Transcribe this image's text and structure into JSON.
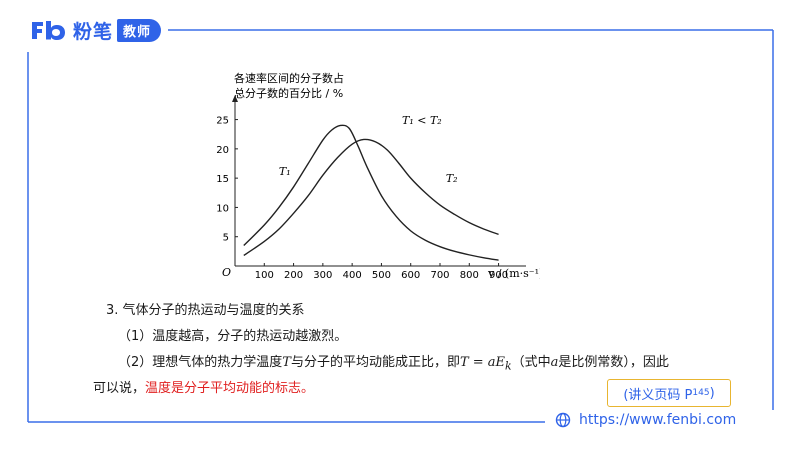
{
  "brand": {
    "logo_mark": "Fb",
    "name": "粉笔",
    "badge": "教师"
  },
  "chart_data": {
    "type": "line",
    "title_line1": "各速率区间的分子数占",
    "title_line2": "总分子数的百分比 / %",
    "origin_label": "O",
    "x_axis_label": "v / (m·s⁻¹)",
    "x_ticks": [
      100,
      200,
      300,
      400,
      500,
      600,
      700,
      800,
      900
    ],
    "y_ticks": [
      5,
      10,
      15,
      20,
      25
    ],
    "xlim": [
      0,
      980
    ],
    "ylim": [
      0,
      28
    ],
    "relation_label": "T₁ < T₂",
    "series": [
      {
        "name": "T₁",
        "x": [
          30,
          100,
          150,
          200,
          250,
          300,
          330,
          360,
          390,
          420,
          450,
          500,
          550,
          600,
          650,
          700,
          750,
          800,
          850,
          900
        ],
        "y": [
          3.5,
          7,
          10,
          13.5,
          17.5,
          21.5,
          23.2,
          24,
          23.5,
          20.5,
          17,
          12,
          8.5,
          6,
          4.4,
          3.3,
          2.5,
          1.9,
          1.4,
          1.0
        ]
      },
      {
        "name": "T₂",
        "x": [
          30,
          100,
          150,
          200,
          250,
          300,
          350,
          400,
          440,
          480,
          520,
          560,
          600,
          650,
          700,
          750,
          800,
          850,
          900
        ],
        "y": [
          1.8,
          4.2,
          6.3,
          9,
          12,
          15.5,
          18.5,
          20.8,
          21.6,
          21.2,
          19.8,
          17.5,
          15,
          12.5,
          10.4,
          8.8,
          7.4,
          6.3,
          5.4
        ]
      }
    ]
  },
  "text": {
    "section_title": "3. 气体分子的热运动与温度的关系",
    "point1": "（1）温度越高，分子的热运动越激烈。",
    "point2_a": "（2）理想气体的热力学温度",
    "point2_T": "T",
    "point2_b": "与分子的平均动能成正比，即",
    "point2_eq": "T  =  aE",
    "point2_eq_sub": "k",
    "point2_c": "（式中",
    "point2_a_var": "a",
    "point2_d": "是比例常数），因此",
    "point3_a": "可以说，",
    "point3_hl": "温度是分子平均动能的标志。"
  },
  "ref": {
    "label": "(讲义页码 P",
    "sub": "145",
    "close": " )"
  },
  "footer": {
    "url": "https://www.fenbi.com"
  },
  "colors": {
    "brand_blue": "#2f63e8",
    "highlight_red": "#e02020",
    "ref_border": "#e8b530"
  }
}
